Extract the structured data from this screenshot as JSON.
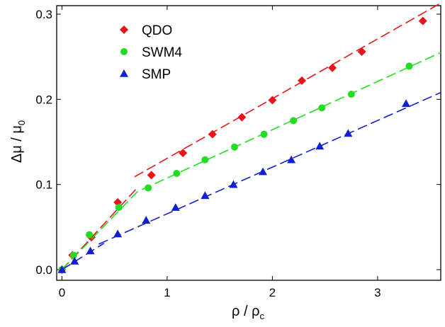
{
  "chart_data": {
    "type": "scatter",
    "xlabel": "ρ / ρ",
    "xlabel_sub": "c",
    "ylabel": "Δμ / μ",
    "ylabel_sub": "0",
    "xlim": [
      -0.05,
      3.6
    ],
    "ylim": [
      -0.0125,
      0.31
    ],
    "xticks": [
      0,
      1,
      2,
      3
    ],
    "yticks": [
      {
        "value": 0,
        "label": "0.0"
      },
      0.1,
      0.2,
      0.3
    ],
    "legend": "upper left",
    "series": [
      {
        "name": "QDO",
        "color": "#e8141c",
        "marker": "diamond",
        "x": [
          0,
          0.1,
          0.28,
          0.53,
          0.85,
          1.15,
          1.43,
          1.71,
          2.0,
          2.28,
          2.57,
          2.85,
          3.43
        ],
        "values": [
          0,
          0.017,
          0.038,
          0.079,
          0.111,
          0.137,
          0.159,
          0.179,
          0.199,
          0.222,
          0.237,
          0.256,
          0.292
        ],
        "fits": [
          {
            "x": [
              0,
              0.7
            ],
            "values": [
              0,
              0.094
            ]
          },
          {
            "x": [
              0.69,
              3.6
            ],
            "values": [
              0.109,
              0.313
            ]
          }
        ]
      },
      {
        "name": "SWM4",
        "color": "#22dd22",
        "marker": "circle",
        "x": [
          0,
          0.11,
          0.26,
          0.54,
          0.82,
          1.09,
          1.36,
          1.64,
          1.92,
          2.2,
          2.47,
          2.75,
          3.3
        ],
        "values": [
          0,
          0.017,
          0.041,
          0.073,
          0.096,
          0.113,
          0.129,
          0.144,
          0.159,
          0.175,
          0.19,
          0.206,
          0.239
        ],
        "fits": [
          {
            "x": [
              0,
              0.72
            ],
            "values": [
              0,
              0.092
            ]
          },
          {
            "x": [
              0.76,
              3.6
            ],
            "values": [
              0.094,
              0.255
            ]
          }
        ]
      },
      {
        "name": "SMP",
        "color": "#1020d0",
        "marker": "triangle",
        "x": [
          0,
          0.12,
          0.27,
          0.53,
          0.8,
          1.08,
          1.36,
          1.63,
          1.91,
          2.18,
          2.45,
          2.72,
          3.27
        ],
        "values": [
          0,
          0.01,
          0.022,
          0.042,
          0.058,
          0.073,
          0.087,
          0.1,
          0.115,
          0.129,
          0.145,
          0.16,
          0.195
        ],
        "fits": [
          {
            "x": [
              0,
              0.4
            ],
            "values": [
              0,
              0.031
            ]
          },
          {
            "x": [
              0.35,
              3.6
            ],
            "values": [
              0.03,
              0.208
            ]
          }
        ]
      }
    ]
  }
}
